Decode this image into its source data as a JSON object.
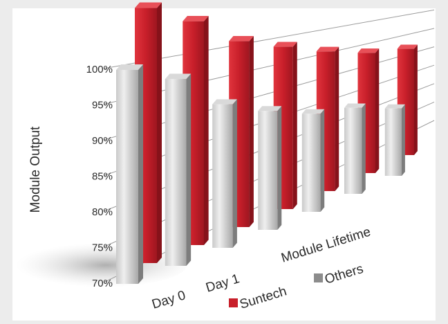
{
  "chart_data": {
    "type": "bar",
    "title": "",
    "xlabel": "Module Lifetime",
    "ylabel": "Module Output",
    "x_ticks": [
      "Day 0",
      "Day 1"
    ],
    "yticks": [
      "70%",
      "75%",
      "80%",
      "85%",
      "90%",
      "95%",
      "100%"
    ],
    "ylim": [
      70,
      100
    ],
    "categories": [
      "1",
      "2",
      "3",
      "4",
      "5",
      "6",
      "7"
    ],
    "series": [
      {
        "name": "Others",
        "values": [
          100,
          98.5,
          94,
          92,
          90.3,
          90.2,
          88.3
        ],
        "color": "#9a9a9a"
      },
      {
        "name": "Suntech",
        "values": [
          101.5,
          99.5,
          96,
          94.4,
          92.6,
          91.1,
          90.6
        ],
        "color": "#c41e2a"
      }
    ],
    "legend": {
      "placement": "bottom",
      "items": [
        "Suntech",
        "Others"
      ]
    },
    "grid": true
  }
}
